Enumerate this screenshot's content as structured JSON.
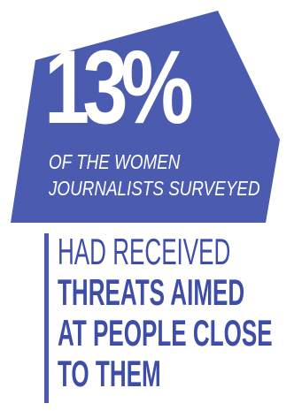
{
  "colors": {
    "badge_fill": "#4b5bb0",
    "text_white": "#ffffff",
    "text_blue": "#3e4ea6"
  },
  "stat": {
    "value": "13%",
    "caption_line_1": "OF THE WOMEN",
    "caption_line_2": "JOURNALISTS SURVEYED"
  },
  "detail": {
    "line_1": "HAD RECEIVED",
    "line_2": "THREATS AIMED",
    "line_3": "AT PEOPLE CLOSE",
    "line_4": "TO THEM"
  }
}
